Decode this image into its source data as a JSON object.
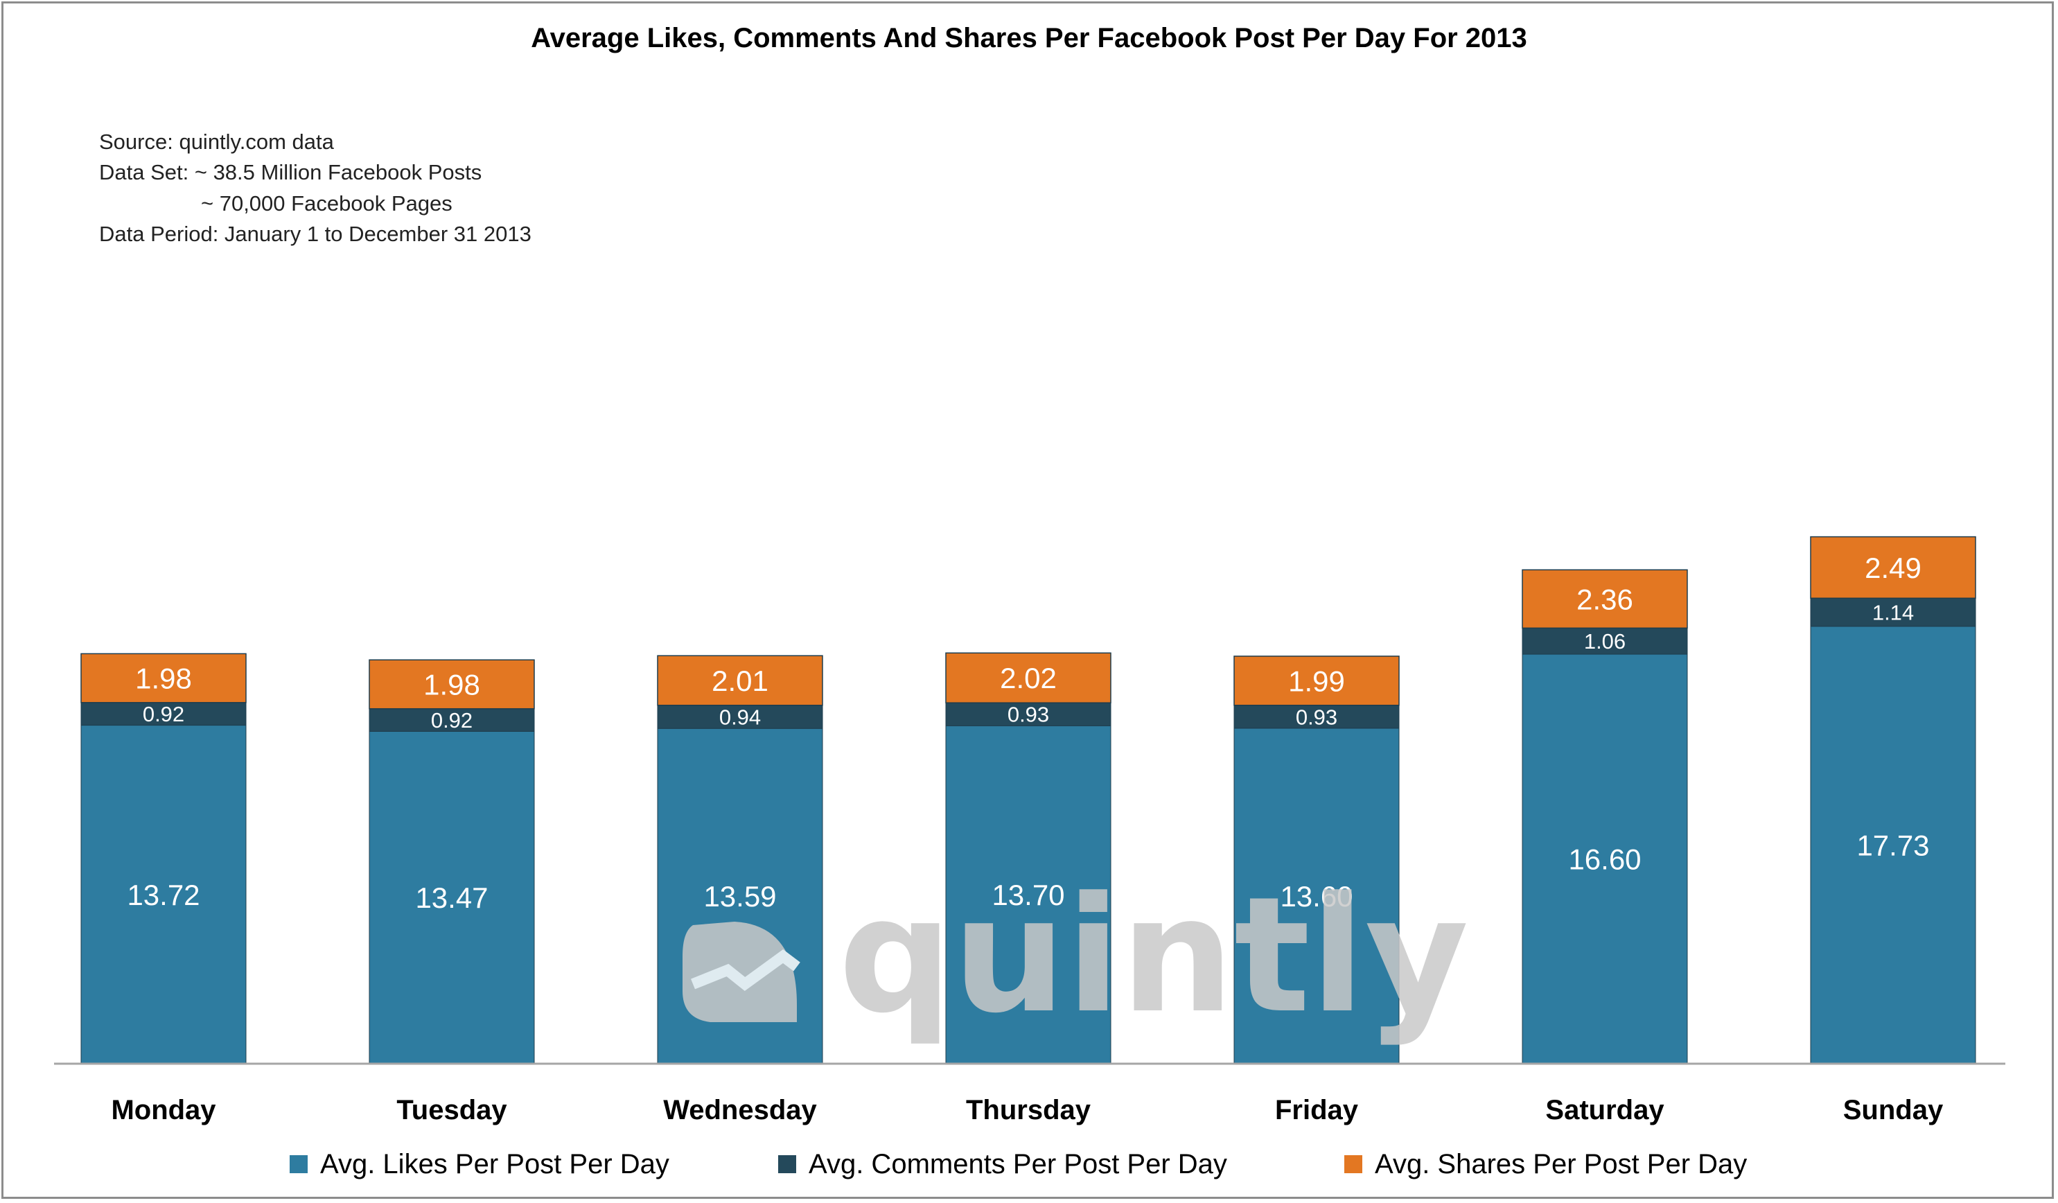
{
  "chart_data": {
    "type": "bar",
    "stacked": true,
    "title": "Average Likes, Comments And Shares Per Facebook Post Per Day For 2013",
    "notes": [
      "Source: quintly.com data",
      "Data Set: ~ 38.5 Million Facebook Posts",
      "~ 70,000 Facebook Pages",
      "Data Period: January 1 to December 31 2013"
    ],
    "categories": [
      "Monday",
      "Tuesday",
      "Wednesday",
      "Thursday",
      "Friday",
      "Saturday",
      "Sunday"
    ],
    "series": [
      {
        "name": "Avg. Likes Per Post Per Day",
        "color": "#2e7ca0",
        "values": [
          13.72,
          13.47,
          13.59,
          13.7,
          13.6,
          16.6,
          17.73
        ]
      },
      {
        "name": "Avg. Comments Per Post Per Day",
        "color": "#24495b",
        "values": [
          0.92,
          0.92,
          0.94,
          0.93,
          0.93,
          1.06,
          1.14
        ]
      },
      {
        "name": "Avg. Shares Per Post Per Day",
        "color": "#e37722",
        "values": [
          1.98,
          1.98,
          2.01,
          2.02,
          1.99,
          2.36,
          2.49
        ]
      }
    ],
    "ylim": [
      0,
      24
    ],
    "grid": false,
    "legend_position": "bottom",
    "watermark": "quintly"
  }
}
